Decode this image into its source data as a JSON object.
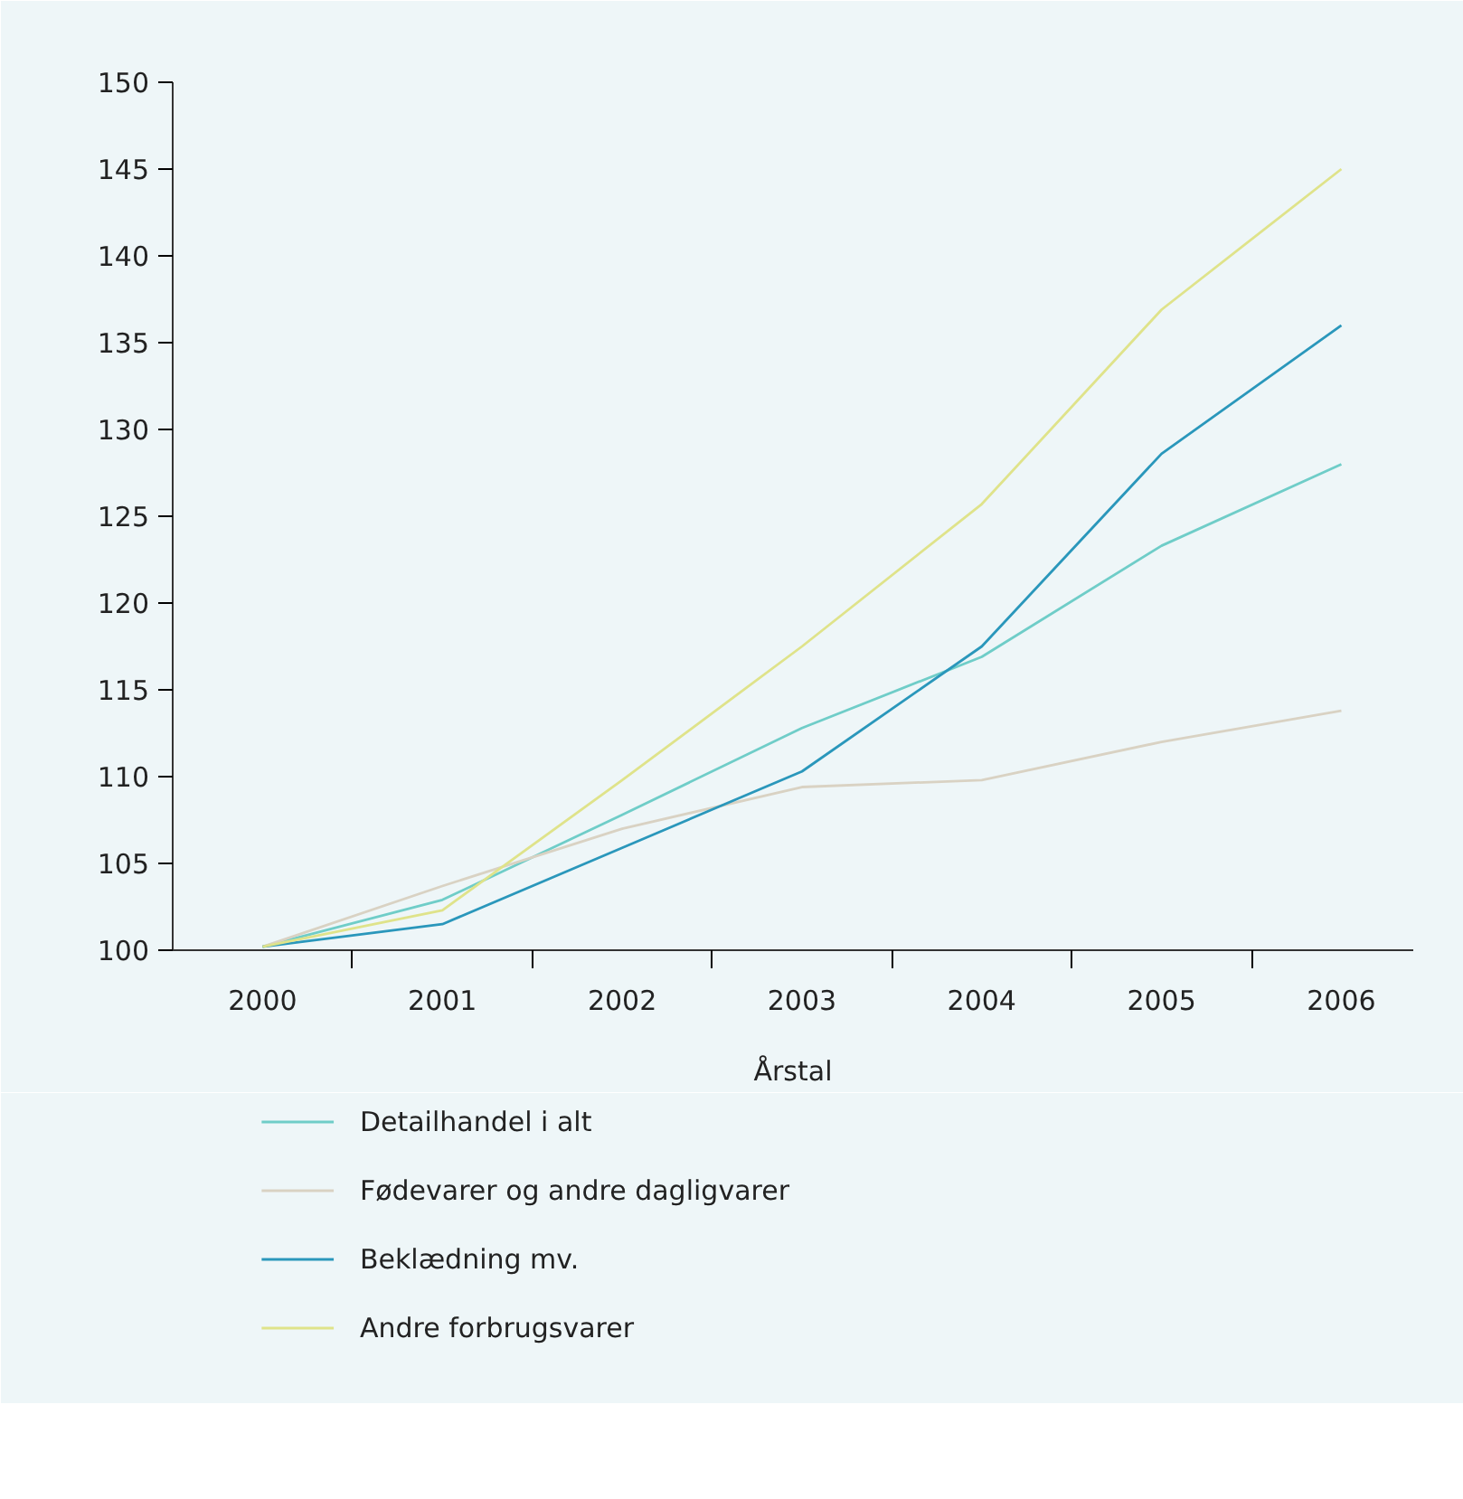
{
  "chart_data": {
    "type": "line",
    "xlabel": "Årstal",
    "categories": [
      "2000",
      "2001",
      "2002",
      "2003",
      "2004",
      "2005",
      "2006"
    ],
    "ylim": [
      100,
      150
    ],
    "yticks": [
      100,
      105,
      110,
      115,
      120,
      125,
      130,
      135,
      140,
      145,
      150
    ],
    "grid": false,
    "legend": "bottom",
    "marker": "none",
    "line_style": "solid",
    "series": [
      {
        "name": "Detailhandel i alt",
        "color": "#6fcdc8",
        "values": [
          100.2,
          102.9,
          107.8,
          112.8,
          116.9,
          123.3,
          128.0
        ]
      },
      {
        "name": "Fødevarer og andre dagligvarer",
        "color": "#d9d2c3",
        "values": [
          100.2,
          103.7,
          107.0,
          109.4,
          109.8,
          112.0,
          113.8
        ]
      },
      {
        "name": "Beklædning mv.",
        "color": "#2a97bb",
        "values": [
          100.2,
          101.5,
          105.9,
          110.3,
          117.5,
          128.6,
          136.0
        ]
      },
      {
        "name": "Andre forbrugsvarer",
        "color": "#dfe38a",
        "values": [
          100.2,
          102.3,
          109.8,
          117.5,
          125.7,
          136.9,
          145.0
        ]
      }
    ]
  }
}
